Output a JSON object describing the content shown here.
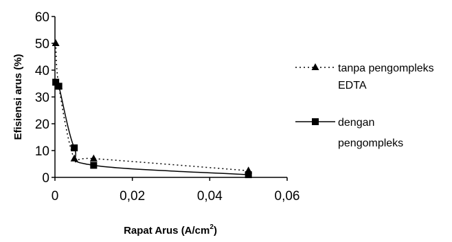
{
  "chart_data": {
    "type": "line",
    "title": "",
    "xlabel": {
      "main": "Rapat Arus (A/cm",
      "sup": "2",
      "end": ")"
    },
    "ylabel": "Efisiensi arus (%)",
    "xlim": [
      0,
      0.06
    ],
    "ylim": [
      0,
      60
    ],
    "x_ticks": [
      0,
      0.02,
      0.04,
      0.06
    ],
    "x_tick_labels": [
      "0",
      "0,02",
      "0,04",
      "0,06"
    ],
    "y_ticks": [
      0,
      10,
      20,
      30,
      40,
      50,
      60
    ],
    "y_tick_labels": [
      "0",
      "10",
      "20",
      "30",
      "40",
      "50",
      "60"
    ],
    "grid": false,
    "legend_position": "right",
    "series": [
      {
        "name_lines": [
          "tanpa pengompleks",
          "EDTA"
        ],
        "marker": "triangle",
        "line_style": "dotted",
        "color": "#000000",
        "x": [
          0.0002,
          0.001,
          0.005,
          0.01,
          0.05
        ],
        "y": [
          50,
          34,
          7,
          7,
          2.5
        ]
      },
      {
        "name_lines": [
          "dengan",
          "pengompleks"
        ],
        "marker": "square",
        "line_style": "solid",
        "color": "#000000",
        "x": [
          0.0002,
          0.001,
          0.005,
          0.01,
          0.05
        ],
        "y": [
          35.5,
          34,
          11,
          4.5,
          1
        ]
      }
    ]
  }
}
